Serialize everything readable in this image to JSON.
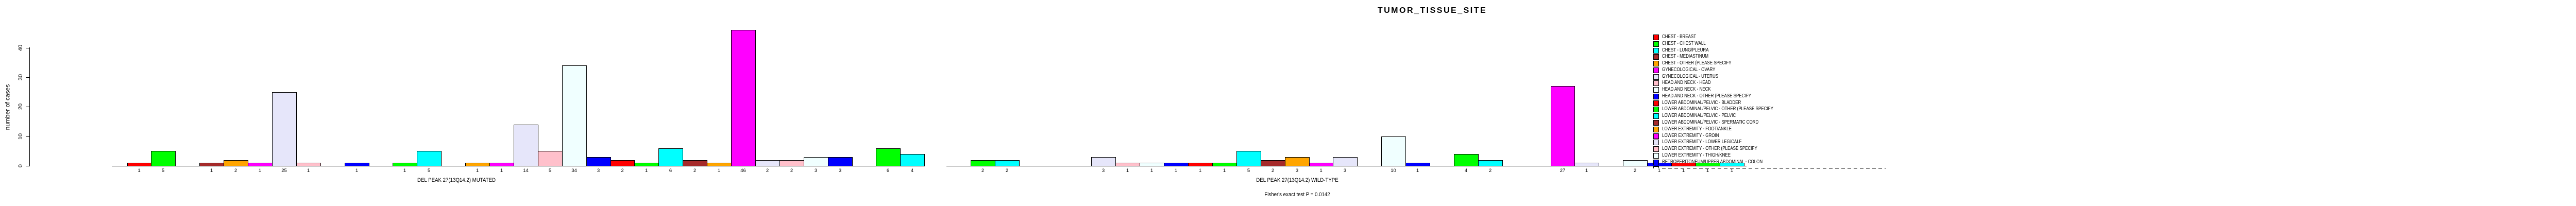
{
  "title": "TUMOR_TISSUE_SITE",
  "y_axis": {
    "label": "number of cases",
    "ticks": [
      0,
      10,
      20,
      30,
      40
    ]
  },
  "groups": [
    {
      "label": "DEL PEAK 27(13Q14.2) MUTATED",
      "counts": [
        1,
        5,
        0,
        1,
        2,
        1,
        25,
        1,
        0,
        1,
        0,
        1,
        5,
        0,
        1,
        1,
        14,
        5,
        34,
        3,
        2,
        1,
        6,
        2,
        1,
        46,
        2,
        2,
        3,
        3,
        0,
        6,
        4
      ]
    },
    {
      "label": "DEL PEAK 27(13Q14.2) WILD-TYPE",
      "counts": [
        0,
        2,
        2,
        0,
        0,
        0,
        3,
        1,
        1,
        1,
        1,
        1,
        5,
        2,
        3,
        1,
        3,
        0,
        10,
        1,
        0,
        4,
        2,
        0,
        0,
        27,
        1,
        0,
        2,
        1,
        1,
        1,
        1
      ]
    }
  ],
  "footer": "Fisher's exact test P = 0.0142",
  "palette": [
    "#FF0000",
    "#00FF00",
    "#00FFFF",
    "#A52A2A",
    "#FFA500",
    "#FF00FF",
    "#E6E6FA",
    "#FFC0CB",
    "#F0FFFF",
    "#0000FF"
  ],
  "legend": {
    "entries": [
      {
        "label": "CHEST - BREAST",
        "color": "#FF0000"
      },
      {
        "label": "CHEST - CHEST WALL",
        "color": "#00FF00"
      },
      {
        "label": "CHEST - LUNG/PLEURA",
        "color": "#00FFFF"
      },
      {
        "label": "CHEST - MEDIASTINUM",
        "color": "#A52A2A"
      },
      {
        "label": "CHEST - OTHER (PLEASE SPECIFY",
        "color": "#FFA500"
      },
      {
        "label": "GYNECOLOGICAL - OVARY",
        "color": "#FF00FF"
      },
      {
        "label": "GYNECOLOGICAL - UTERUS",
        "color": "#E6E6FA"
      },
      {
        "label": "HEAD AND NECK - HEAD",
        "color": "#FFC0CB"
      },
      {
        "label": "HEAD AND NECK - NECK",
        "color": "#F0FFFF"
      },
      {
        "label": "HEAD AND NECK - OTHER (PLEASE SPECIFY",
        "color": "#0000FF"
      },
      {
        "label": "LOWER ABDOMINAL/PELVIC - BLADDER",
        "color": "#FF0000"
      },
      {
        "label": "LOWER ABDOMINAL/PELVIC - OTHER (PLEASE SPECIFY",
        "color": "#00FF00"
      },
      {
        "label": "LOWER ABDOMINAL/PELVIC - PELVIC",
        "color": "#00FFFF"
      },
      {
        "label": "LOWER ABDOMINAL/PELVIC - SPERMATIC CORD",
        "color": "#A52A2A"
      },
      {
        "label": "LOWER EXTREMITY - FOOT/ANKLE",
        "color": "#FFA500"
      },
      {
        "label": "LOWER EXTREMITY - GROIN",
        "color": "#FF00FF"
      },
      {
        "label": "LOWER EXTREMITY - LOWER LEG/CALF",
        "color": "#E6E6FA"
      },
      {
        "label": "LOWER EXTREMITY - OTHER (PLEASE SPECIFY",
        "color": "#FFC0CB"
      },
      {
        "label": "LOWER EXTREMITY - THIGH/KNEE",
        "color": "#F0FFFF"
      },
      {
        "label": "RETROPERITONEUM/UPPER ABDOMINAL - COLON",
        "color": "#0000FF"
      }
    ],
    "clipped_entry": {
      "color": "#FF0000",
      "label": ""
    }
  },
  "chart_data": {
    "type": "bar",
    "title": "TUMOR_TISSUE_SITE",
    "ylabel": "number of cases",
    "xlabel_groups": [
      "DEL PEAK 27(13Q14.2) MUTATED",
      "DEL PEAK 27(13Q14.2) WILD-TYPE"
    ],
    "ylim": [
      0,
      40
    ],
    "yticks": [
      0,
      10,
      20,
      30,
      40
    ],
    "grid": false,
    "legend_position": "right",
    "annotation": "Fisher's exact test P = 0.0142",
    "categories": [
      "CHEST - BREAST",
      "CHEST - CHEST WALL",
      "CHEST - LUNG/PLEURA",
      "CHEST - MEDIASTINUM",
      "CHEST - OTHER (PLEASE SPECIFY",
      "GYNECOLOGICAL - OVARY",
      "GYNECOLOGICAL - UTERUS",
      "HEAD AND NECK - HEAD",
      "HEAD AND NECK - NECK",
      "HEAD AND NECK - OTHER (PLEASE SPECIFY",
      "LOWER ABDOMINAL/PELVIC - BLADDER",
      "LOWER ABDOMINAL/PELVIC - OTHER (PLEASE SPECIFY",
      "LOWER ABDOMINAL/PELVIC - PELVIC",
      "LOWER ABDOMINAL/PELVIC - SPERMATIC CORD",
      "LOWER EXTREMITY - FOOT/ANKLE",
      "LOWER EXTREMITY - GROIN",
      "LOWER EXTREMITY - LOWER LEG/CALF",
      "LOWER EXTREMITY - OTHER (PLEASE SPECIFY",
      "LOWER EXTREMITY - THIGH/KNEE",
      "RETROPERITONEUM/UPPER ABDOMINAL - COLON",
      "",
      "",
      "",
      "",
      "",
      "",
      "",
      "",
      "",
      "",
      "",
      "",
      ""
    ],
    "series": [
      {
        "name": "DEL PEAK 27(13Q14.2) MUTATED",
        "values": [
          1,
          5,
          0,
          1,
          2,
          1,
          25,
          1,
          0,
          1,
          0,
          1,
          5,
          0,
          1,
          1,
          14,
          5,
          34,
          3,
          2,
          1,
          6,
          2,
          1,
          46,
          2,
          2,
          3,
          3,
          0,
          6,
          4
        ]
      },
      {
        "name": "DEL PEAK 27(13Q14.2) WILD-TYPE",
        "values": [
          0,
          2,
          2,
          0,
          0,
          0,
          3,
          1,
          1,
          1,
          1,
          1,
          5,
          2,
          3,
          1,
          3,
          0,
          10,
          1,
          0,
          4,
          2,
          0,
          0,
          27,
          1,
          0,
          2,
          1,
          1,
          1,
          1
        ]
      }
    ],
    "color_cycle": [
      "#FF0000",
      "#00FF00",
      "#00FFFF",
      "#A52A2A",
      "#FFA500",
      "#FF00FF",
      "#E6E6FA",
      "#FFC0CB",
      "#F0FFFF",
      "#0000FF"
    ]
  }
}
